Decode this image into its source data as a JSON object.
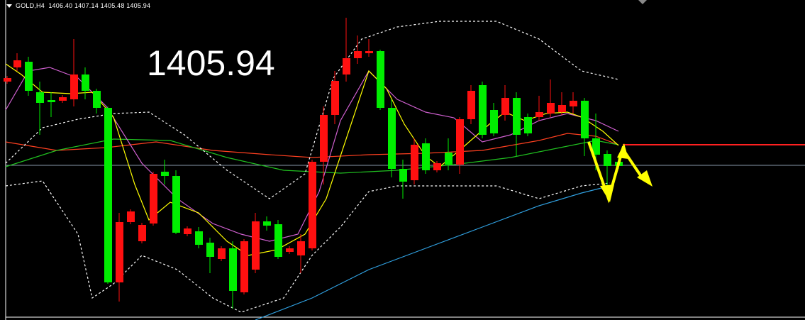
{
  "header": {
    "symbol": "GOLD,H4",
    "open": "1406.40",
    "high": "1407.14",
    "low": "1405.48",
    "close": "1405.94"
  },
  "price_label": "1405.94"
}
